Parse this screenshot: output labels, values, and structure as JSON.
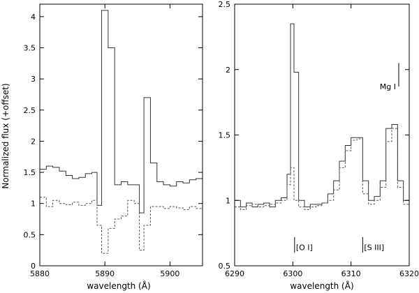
{
  "chart_data": [
    {
      "type": "line",
      "step": true,
      "title": "",
      "xlabel": "wavelength (Å)",
      "ylabel": "Normalized flux (+offset)",
      "xlim": [
        5880,
        5905
      ],
      "ylim": [
        0,
        4.2
      ],
      "xticks": [
        5880,
        5890,
        5900
      ],
      "yticks": [
        0,
        0.5,
        1,
        1.5,
        2,
        2.5,
        3,
        3.5,
        4
      ],
      "ytick_labels": [
        "0",
        "0.5",
        "1",
        "1.5",
        "2",
        "2.5",
        "3",
        "3.5",
        "4"
      ],
      "series": [
        {
          "style": "solid",
          "x": [
            5880,
            5881,
            5882,
            5883,
            5884,
            5885,
            5886,
            5887,
            5888,
            5888.8,
            5889.5,
            5890.5,
            5891.5,
            5892.5,
            5893.5,
            5894.5,
            5895.3,
            5896,
            5897,
            5898,
            5899,
            5900,
            5901,
            5902,
            5903,
            5904,
            5905
          ],
          "y": [
            1.55,
            1.6,
            1.58,
            1.52,
            1.45,
            1.4,
            1.42,
            1.48,
            1.5,
            0.97,
            4.1,
            3.5,
            1.3,
            1.35,
            1.3,
            1.3,
            0.85,
            2.7,
            1.65,
            1.35,
            1.3,
            1.28,
            1.35,
            1.33,
            1.38,
            1.4,
            1.38
          ]
        },
        {
          "style": "dashed",
          "x": [
            5880,
            5881,
            5882,
            5883,
            5884,
            5885,
            5886,
            5887,
            5888,
            5888.8,
            5889.5,
            5890.5,
            5891.5,
            5892.5,
            5893.5,
            5894.5,
            5895.3,
            5896,
            5897,
            5898,
            5899,
            5900,
            5901,
            5902,
            5903,
            5904,
            5905
          ],
          "y": [
            1.1,
            0.95,
            1.05,
            1.0,
            0.98,
            1.02,
            0.97,
            1.0,
            1.05,
            0.65,
            0.2,
            0.6,
            0.75,
            0.8,
            1.05,
            1.0,
            0.25,
            0.65,
            0.95,
            0.95,
            0.92,
            0.95,
            0.93,
            0.9,
            0.95,
            0.92,
            0.9
          ]
        }
      ]
    },
    {
      "type": "line",
      "step": true,
      "title": "",
      "xlabel": "wavelength (Å)",
      "ylabel": "",
      "xlim": [
        6290,
        6320
      ],
      "ylim": [
        0.5,
        2.5
      ],
      "xticks": [
        6290,
        6300,
        6310,
        6320
      ],
      "yticks": [
        0.5,
        1,
        1.5,
        2,
        2.5
      ],
      "ytick_labels": [
        "0.5",
        "1",
        "1.5",
        "2",
        "2.5"
      ],
      "annotations": [
        {
          "text": "[O I]",
          "x": 6300.3
        },
        {
          "text": "[S III]",
          "x": 6312
        },
        {
          "text": "Mg I",
          "x": 6318.2
        }
      ],
      "series": [
        {
          "style": "solid",
          "x": [
            6290,
            6291,
            6292,
            6293,
            6294,
            6295,
            6296,
            6297,
            6298,
            6299,
            6299.6,
            6300.2,
            6301,
            6302,
            6303,
            6304,
            6305,
            6306,
            6307,
            6308,
            6309,
            6310,
            6311,
            6312,
            6313,
            6314,
            6315,
            6316,
            6317,
            6318,
            6319,
            6320
          ],
          "y": [
            1.0,
            0.95,
            0.98,
            0.95,
            0.97,
            0.98,
            0.95,
            1.0,
            1.02,
            1.2,
            2.35,
            1.98,
            1.0,
            0.95,
            0.97,
            0.97,
            0.98,
            1.05,
            1.15,
            1.3,
            1.42,
            1.48,
            1.48,
            1.15,
            1.0,
            1.03,
            1.15,
            1.55,
            1.58,
            1.15,
            1.0,
            0.95
          ]
        },
        {
          "style": "dashed",
          "x": [
            6290,
            6291,
            6292,
            6293,
            6294,
            6295,
            6296,
            6297,
            6298,
            6299,
            6299.6,
            6300.2,
            6301,
            6302,
            6303,
            6304,
            6305,
            6306,
            6307,
            6308,
            6309,
            6310,
            6311,
            6312,
            6313,
            6314,
            6315,
            6316,
            6317,
            6318,
            6319,
            6320
          ],
          "y": [
            0.95,
            0.93,
            0.96,
            0.97,
            0.95,
            0.96,
            0.97,
            0.98,
            1.0,
            1.12,
            1.25,
            1.0,
            0.95,
            0.93,
            0.95,
            0.96,
            0.98,
            1.0,
            1.08,
            1.25,
            1.38,
            1.46,
            1.47,
            1.05,
            0.97,
            1.0,
            1.1,
            1.45,
            1.55,
            1.1,
            0.97,
            0.93
          ]
        }
      ]
    }
  ]
}
